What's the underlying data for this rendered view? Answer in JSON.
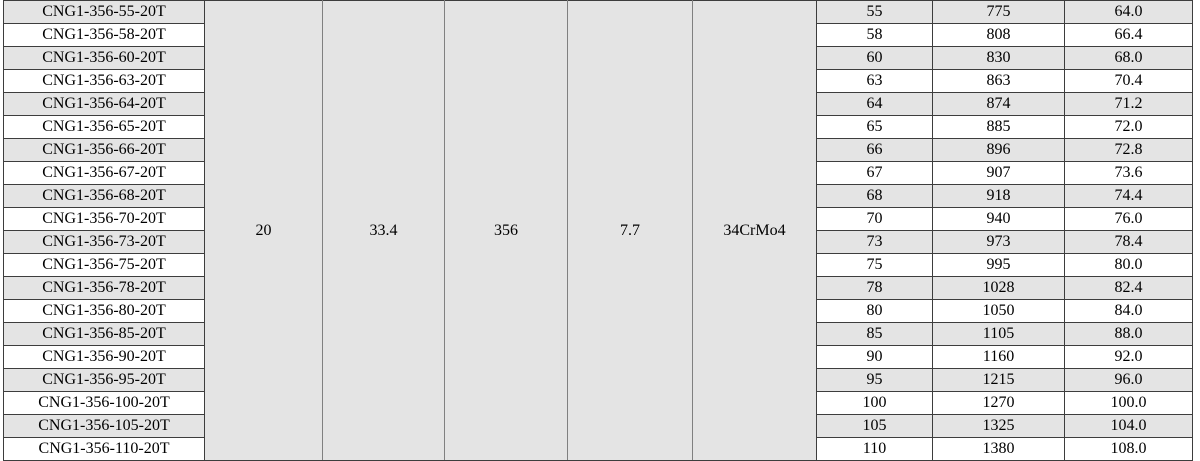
{
  "table": {
    "merged_values": [
      "20",
      "33.4",
      "356",
      "7.7",
      "34CrMo4"
    ],
    "rows": [
      {
        "model": "CNG1-356-55-20T",
        "values": [
          "55",
          "775",
          "64.0"
        ]
      },
      {
        "model": "CNG1-356-58-20T",
        "values": [
          "58",
          "808",
          "66.4"
        ]
      },
      {
        "model": "CNG1-356-60-20T",
        "values": [
          "60",
          "830",
          "68.0"
        ]
      },
      {
        "model": "CNG1-356-63-20T",
        "values": [
          "63",
          "863",
          "70.4"
        ]
      },
      {
        "model": "CNG1-356-64-20T",
        "values": [
          "64",
          "874",
          "71.2"
        ]
      },
      {
        "model": "CNG1-356-65-20T",
        "values": [
          "65",
          "885",
          "72.0"
        ]
      },
      {
        "model": "CNG1-356-66-20T",
        "values": [
          "66",
          "896",
          "72.8"
        ]
      },
      {
        "model": "CNG1-356-67-20T",
        "values": [
          "67",
          "907",
          "73.6"
        ]
      },
      {
        "model": "CNG1-356-68-20T",
        "values": [
          "68",
          "918",
          "74.4"
        ]
      },
      {
        "model": "CNG1-356-70-20T",
        "values": [
          "70",
          "940",
          "76.0"
        ]
      },
      {
        "model": "CNG1-356-73-20T",
        "values": [
          "73",
          "973",
          "78.4"
        ]
      },
      {
        "model": "CNG1-356-75-20T",
        "values": [
          "75",
          "995",
          "80.0"
        ]
      },
      {
        "model": "CNG1-356-78-20T",
        "values": [
          "78",
          "1028",
          "82.4"
        ]
      },
      {
        "model": "CNG1-356-80-20T",
        "values": [
          "80",
          "1050",
          "84.0"
        ]
      },
      {
        "model": "CNG1-356-85-20T",
        "values": [
          "85",
          "1105",
          "88.0"
        ]
      },
      {
        "model": "CNG1-356-90-20T",
        "values": [
          "90",
          "1160",
          "92.0"
        ]
      },
      {
        "model": "CNG1-356-95-20T",
        "values": [
          "95",
          "1215",
          "96.0"
        ]
      },
      {
        "model": "CNG1-356-100-20T",
        "values": [
          "100",
          "1270",
          "100.0"
        ]
      },
      {
        "model": "CNG1-356-105-20T",
        "values": [
          "105",
          "1325",
          "104.0"
        ]
      },
      {
        "model": "CNG1-356-110-20T",
        "values": [
          "110",
          "1380",
          "108.0"
        ]
      }
    ]
  },
  "colors": {
    "shaded_row_bg": "#e4e4e4",
    "plain_row_bg": "#ffffff",
    "merged_cell_bg": "#e4e4e4",
    "grid_dark": "#3d3d3d",
    "grid_gray": "#808080",
    "text": "#000000"
  }
}
